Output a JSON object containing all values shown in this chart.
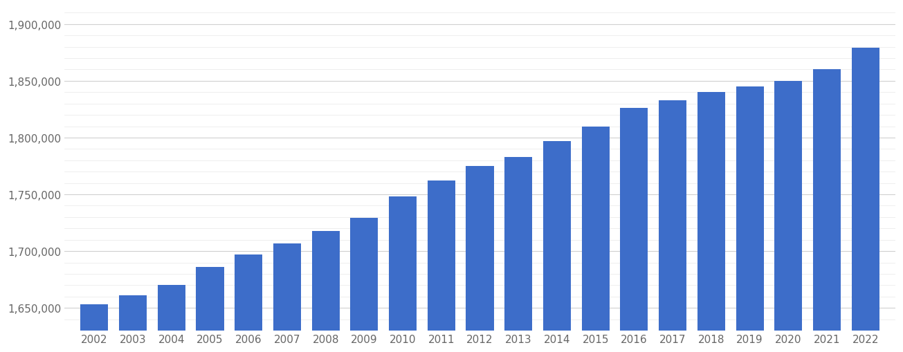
{
  "years": [
    2002,
    2003,
    2004,
    2005,
    2006,
    2007,
    2008,
    2009,
    2010,
    2011,
    2012,
    2013,
    2014,
    2015,
    2016,
    2017,
    2018,
    2019,
    2020,
    2021,
    2022
  ],
  "values": [
    1653000,
    1661000,
    1670000,
    1686000,
    1697000,
    1707000,
    1718000,
    1729000,
    1748000,
    1762000,
    1775000,
    1783000,
    1797000,
    1810000,
    1826000,
    1833000,
    1840000,
    1845000,
    1850000,
    1860000,
    1879000
  ],
  "bar_color": "#3d6dc9",
  "background_color": "#ffffff",
  "ylim_min": 1630000,
  "ylim_max": 1915000,
  "ytick_values": [
    1650000,
    1700000,
    1750000,
    1800000,
    1850000,
    1900000
  ],
  "minor_tick_interval": 10000,
  "grid_color": "#d0d0d0",
  "minor_grid_color": "#e8e8e8",
  "tick_label_color": "#666666",
  "tick_fontsize": 11,
  "bar_width": 0.72
}
